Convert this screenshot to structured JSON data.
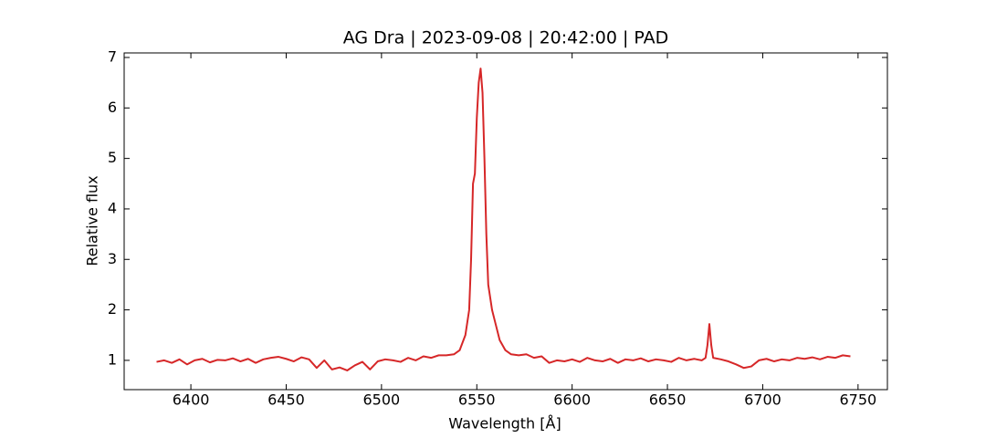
{
  "chart_data": {
    "type": "line",
    "title": "AG Dra | 2023-09-08 | 20:42:00 | PAD",
    "x_label": "Wavelength [Å]",
    "y_label": "Relative flux",
    "xlim": [
      6365,
      6765.4
    ],
    "ylim": [
      0.42,
      7.09
    ],
    "xticks": [
      6400,
      6450,
      6500,
      6550,
      6600,
      6650,
      6700,
      6750
    ],
    "yticks": [
      1,
      2,
      3,
      4,
      5,
      6,
      7
    ],
    "x": [
      6382,
      6386,
      6390,
      6394,
      6398,
      6402,
      6406,
      6410,
      6414,
      6418,
      6422,
      6426,
      6430,
      6434,
      6438,
      6442,
      6446,
      6450,
      6454,
      6458,
      6462,
      6466,
      6470,
      6474,
      6478,
      6482,
      6486,
      6490,
      6494,
      6498,
      6502,
      6506,
      6510,
      6514,
      6518,
      6522,
      6526,
      6530,
      6534,
      6538,
      6541,
      6543,
      6544,
      6546,
      6547,
      6548,
      6549,
      6550,
      6551,
      6552,
      6553,
      6554,
      6555,
      6556,
      6558,
      6560,
      6562,
      6565,
      6568,
      6572,
      6576,
      6580,
      6584,
      6588,
      6592,
      6596,
      6600,
      6604,
      6608,
      6612,
      6616,
      6620,
      6624,
      6628,
      6632,
      6636,
      6640,
      6644,
      6648,
      6652,
      6656,
      6660,
      6664,
      6668,
      6670,
      6671,
      6672,
      6673,
      6674,
      6678,
      6682,
      6686,
      6690,
      6694,
      6698,
      6702,
      6706,
      6710,
      6714,
      6718,
      6722,
      6726,
      6730,
      6734,
      6738,
      6742,
      6746
    ],
    "series": [
      {
        "name": "AG Dra",
        "color": "#d62728",
        "values": [
          0.97,
          1.0,
          0.95,
          1.02,
          0.92,
          1.0,
          1.03,
          0.96,
          1.01,
          1.0,
          1.04,
          0.98,
          1.03,
          0.95,
          1.02,
          1.05,
          1.07,
          1.03,
          0.98,
          1.06,
          1.02,
          0.85,
          1.0,
          0.82,
          0.86,
          0.8,
          0.9,
          0.97,
          0.82,
          0.98,
          1.02,
          1.0,
          0.97,
          1.05,
          1.0,
          1.08,
          1.05,
          1.1,
          1.1,
          1.12,
          1.2,
          1.4,
          1.5,
          2.0,
          3.0,
          4.5,
          4.7,
          5.8,
          6.5,
          6.78,
          6.3,
          5.0,
          3.5,
          2.5,
          2.0,
          1.7,
          1.4,
          1.2,
          1.12,
          1.1,
          1.12,
          1.05,
          1.08,
          0.95,
          1.0,
          0.98,
          1.02,
          0.97,
          1.05,
          1.0,
          0.98,
          1.03,
          0.95,
          1.02,
          1.0,
          1.04,
          0.98,
          1.02,
          1.0,
          0.97,
          1.05,
          1.0,
          1.03,
          1.0,
          1.05,
          1.3,
          1.72,
          1.3,
          1.05,
          1.02,
          0.98,
          0.92,
          0.85,
          0.88,
          1.0,
          1.03,
          0.98,
          1.02,
          1.0,
          1.05,
          1.03,
          1.06,
          1.02,
          1.07,
          1.05,
          1.1,
          1.08
        ]
      }
    ]
  }
}
